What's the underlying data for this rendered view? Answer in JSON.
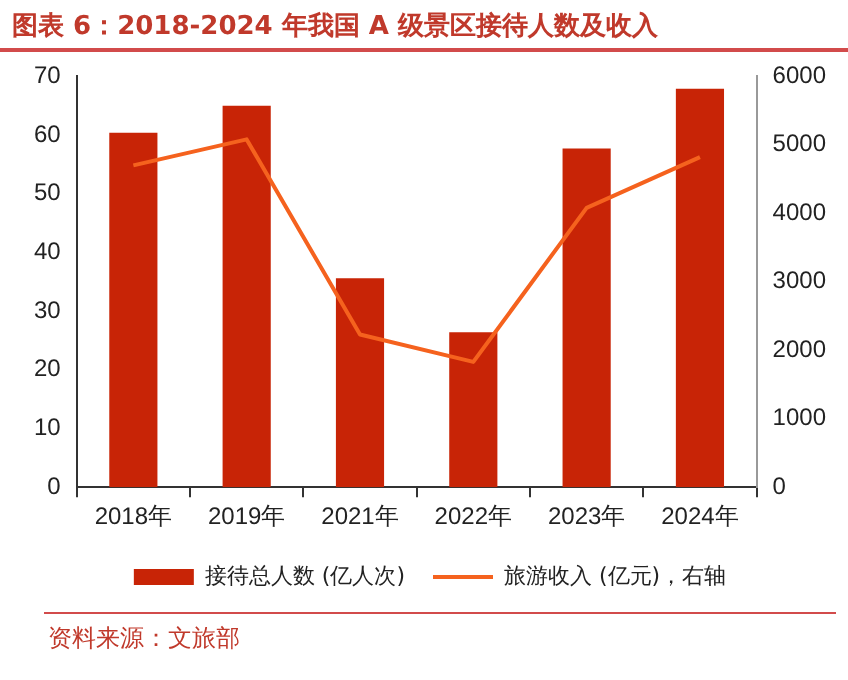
{
  "chart_data": {
    "type": "bar",
    "title": "图表 6：2018-2024 年我国 A 级景区接待人数及收入",
    "categories": [
      "2018年",
      "2019年",
      "2021年",
      "2022年",
      "2023年",
      "2024年"
    ],
    "series": [
      {
        "name": "接待总人数 (亿人次)",
        "color": "#c82406",
        "values": [
          60.4,
          65,
          35.6,
          26.4,
          57.7,
          67.9
        ]
      },
      {
        "name": "旅游收入 (亿元)，右轴",
        "type": "line",
        "axis": "y2",
        "color": "#f5621e",
        "values": [
          4700,
          5080,
          2230,
          1830,
          4080,
          4820
        ]
      }
    ],
    "ylim": [
      0,
      70
    ],
    "yticks": [
      0,
      10,
      20,
      30,
      40,
      50,
      60,
      70
    ],
    "y2lim": [
      0,
      6000
    ],
    "y2ticks": [
      0,
      1000,
      2000,
      3000,
      4000,
      5000,
      6000
    ],
    "grid": false,
    "legend": "bottom",
    "marker": "none",
    "line_style": "solid",
    "annotations": [
      "资料来源：文旅部"
    ]
  }
}
